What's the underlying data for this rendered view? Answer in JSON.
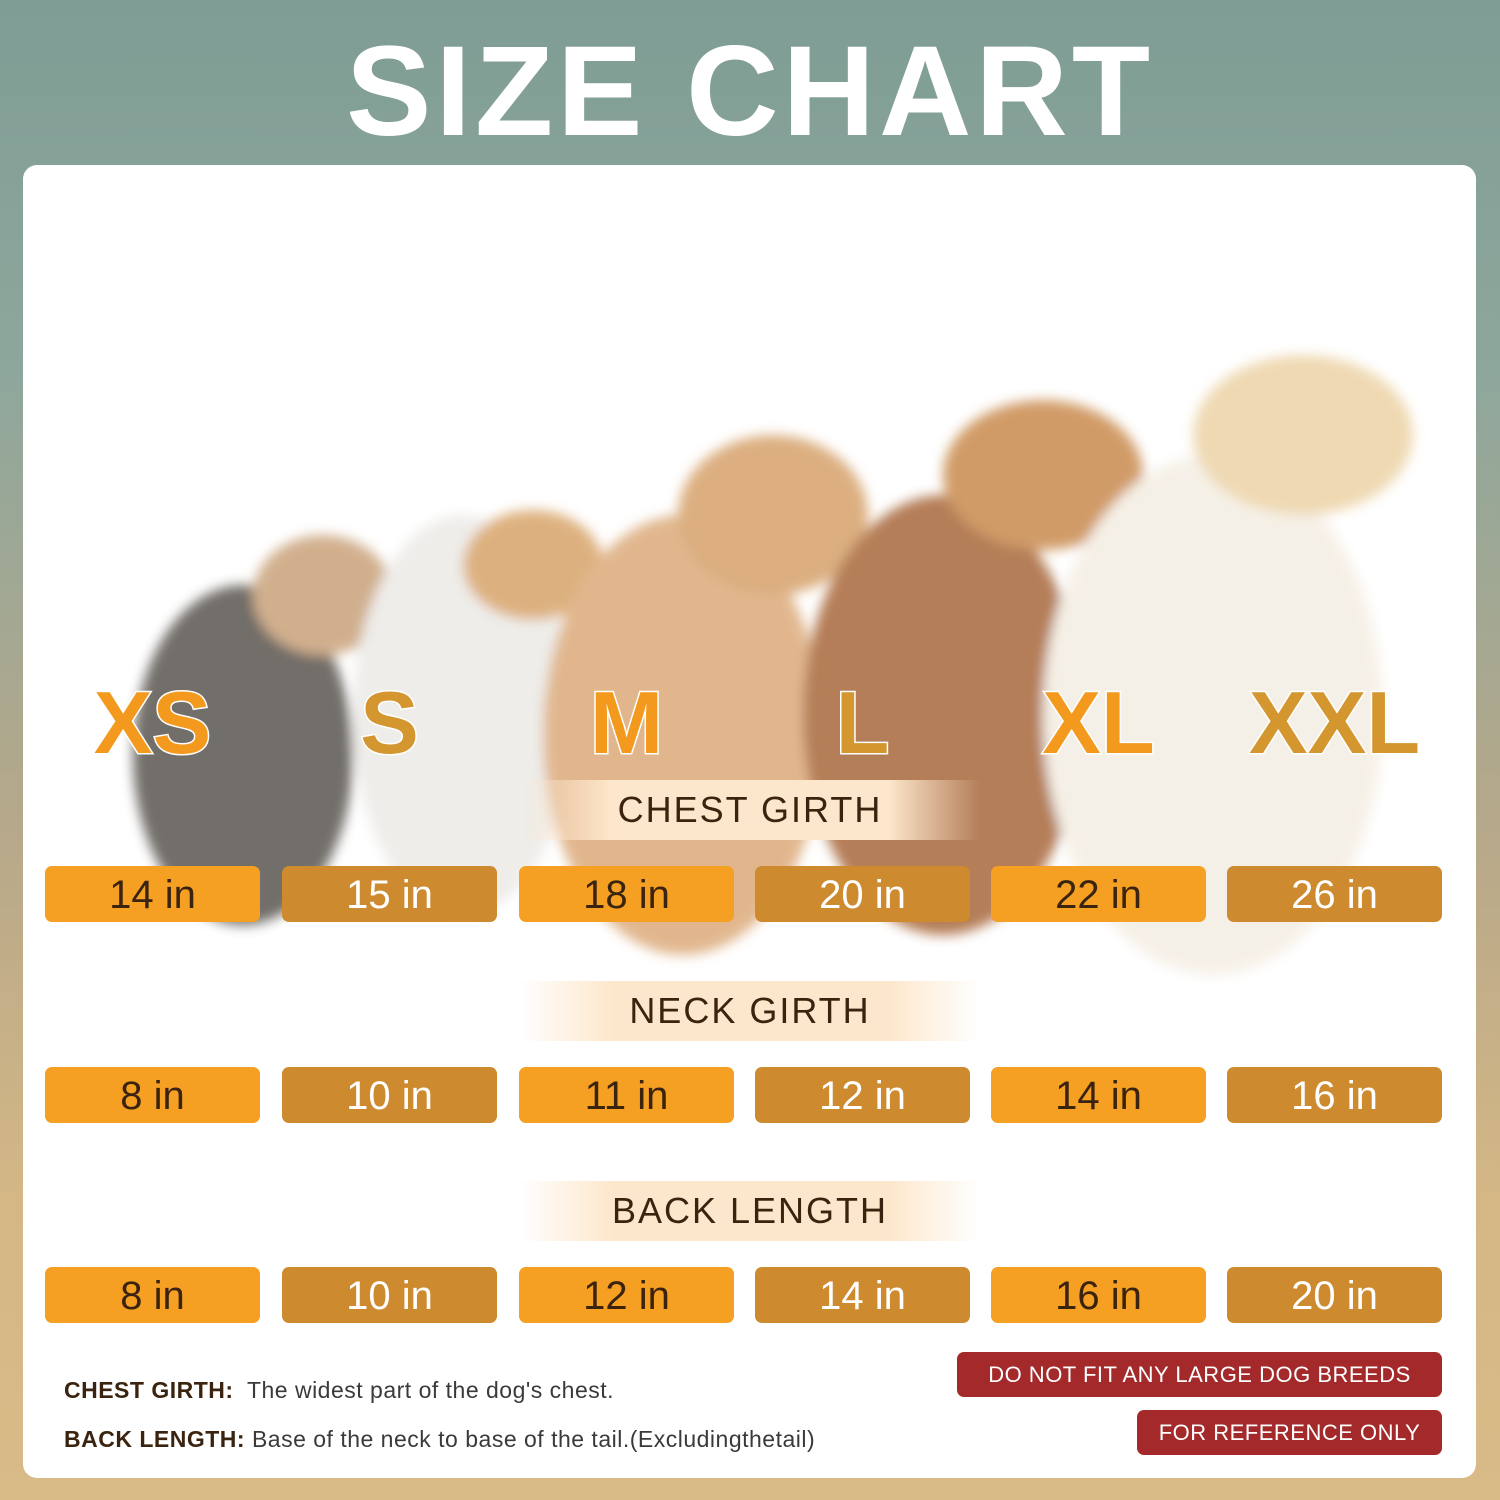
{
  "title": "SIZE CHART",
  "sizes": [
    "XS",
    "S",
    "M",
    "L",
    "XL",
    "XXL"
  ],
  "colors": {
    "orange": "#f59f23",
    "gold": "#cd8a2e",
    "badge": "#a3292b",
    "dark_text": "#3a2410"
  },
  "sections": [
    {
      "label": "CHEST GIRTH",
      "values": [
        "14 in",
        "15 in",
        "18 in",
        "20 in",
        "22 in",
        "26 in"
      ]
    },
    {
      "label": "NECK GIRTH",
      "values": [
        "8 in",
        "10 in",
        "11 in",
        "12 in",
        "14 in",
        "16 in"
      ]
    },
    {
      "label": "BACK LENGTH",
      "values": [
        "8 in",
        "10 in",
        "12 in",
        "14 in",
        "16 in",
        "20 in"
      ]
    }
  ],
  "notes": [
    {
      "term": "CHEST GIRTH:",
      "text": "The widest part of the dog's chest."
    },
    {
      "term": "BACK LENGTH:",
      "text": "Base of the neck to base of the tail.(Excludingthetail)"
    }
  ],
  "badges": [
    "DO NOT FIT ANY LARGE DOG BREEDS",
    "FOR REFERENCE ONLY"
  ]
}
